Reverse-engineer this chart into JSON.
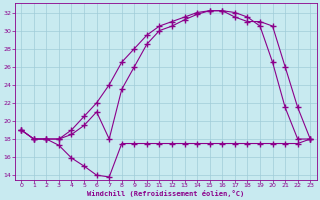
{
  "background_color": "#c8eaf0",
  "line_color": "#8b008b",
  "grid_color": "#a0ccd8",
  "xlabel": "Windchill (Refroidissement éolien,°C)",
  "xlabel_color": "#8b008b",
  "xlim": [
    -0.5,
    23.5
  ],
  "ylim": [
    13.5,
    33
  ],
  "yticks": [
    14,
    16,
    18,
    20,
    22,
    24,
    26,
    28,
    30,
    32
  ],
  "xticks": [
    0,
    1,
    2,
    3,
    4,
    5,
    6,
    7,
    8,
    9,
    10,
    11,
    12,
    13,
    14,
    15,
    16,
    17,
    18,
    19,
    20,
    21,
    22,
    23
  ],
  "curve1_x": [
    0,
    1,
    2,
    3,
    4,
    5,
    6,
    7,
    8,
    9,
    10,
    11,
    12,
    13,
    14,
    15,
    16,
    17,
    18,
    19,
    20,
    21,
    22,
    23
  ],
  "curve1_y": [
    19.0,
    18.0,
    18.0,
    17.3,
    15.9,
    15.0,
    14.0,
    13.8,
    17.5,
    17.5,
    17.5,
    17.5,
    17.5,
    17.5,
    17.5,
    17.5,
    17.5,
    17.5,
    17.5,
    17.5,
    17.5,
    17.5,
    17.5,
    18.0
  ],
  "curve2_x": [
    0,
    1,
    2,
    3,
    4,
    5,
    6,
    7,
    8,
    9,
    10,
    11,
    12,
    13,
    14,
    15,
    16,
    17,
    18,
    19,
    20,
    21,
    22,
    23
  ],
  "curve2_y": [
    19.0,
    18.0,
    18.0,
    18.0,
    18.5,
    19.5,
    21.0,
    18.0,
    23.5,
    26.0,
    28.5,
    30.0,
    30.5,
    31.2,
    31.8,
    32.2,
    32.2,
    32.0,
    31.5,
    30.5,
    26.5,
    21.5,
    18.0,
    18.0
  ],
  "curve3_x": [
    0,
    1,
    2,
    3,
    4,
    5,
    6,
    7,
    8,
    9,
    10,
    11,
    12,
    13,
    14,
    15,
    16,
    17,
    18,
    19,
    20,
    21,
    22,
    23
  ],
  "curve3_y": [
    19.0,
    18.0,
    18.0,
    18.0,
    19.0,
    20.5,
    22.0,
    24.0,
    26.5,
    28.0,
    29.5,
    30.5,
    31.0,
    31.5,
    32.0,
    32.2,
    32.2,
    31.5,
    31.0,
    31.0,
    30.5,
    26.0,
    21.5,
    18.0
  ]
}
